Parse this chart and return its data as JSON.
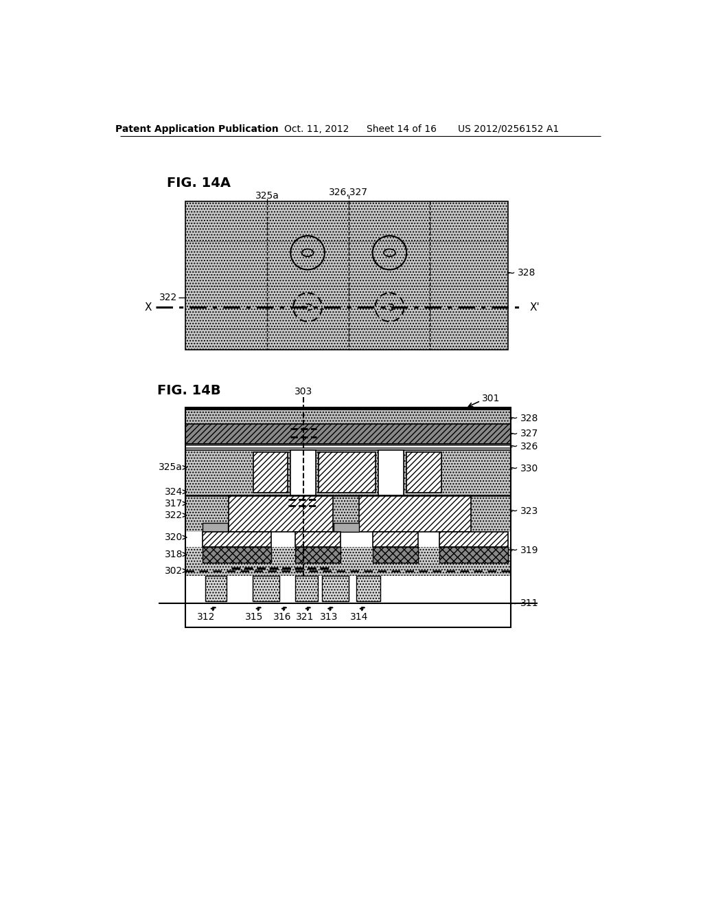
{
  "title_header": "Patent Application Publication",
  "date_header": "Oct. 11, 2012",
  "sheet_header": "Sheet 14 of 16",
  "patent_header": "US 2012/0256152 A1",
  "fig14a_label": "FIG. 14A",
  "fig14b_label": "FIG. 14B",
  "background_color": "#ffffff"
}
